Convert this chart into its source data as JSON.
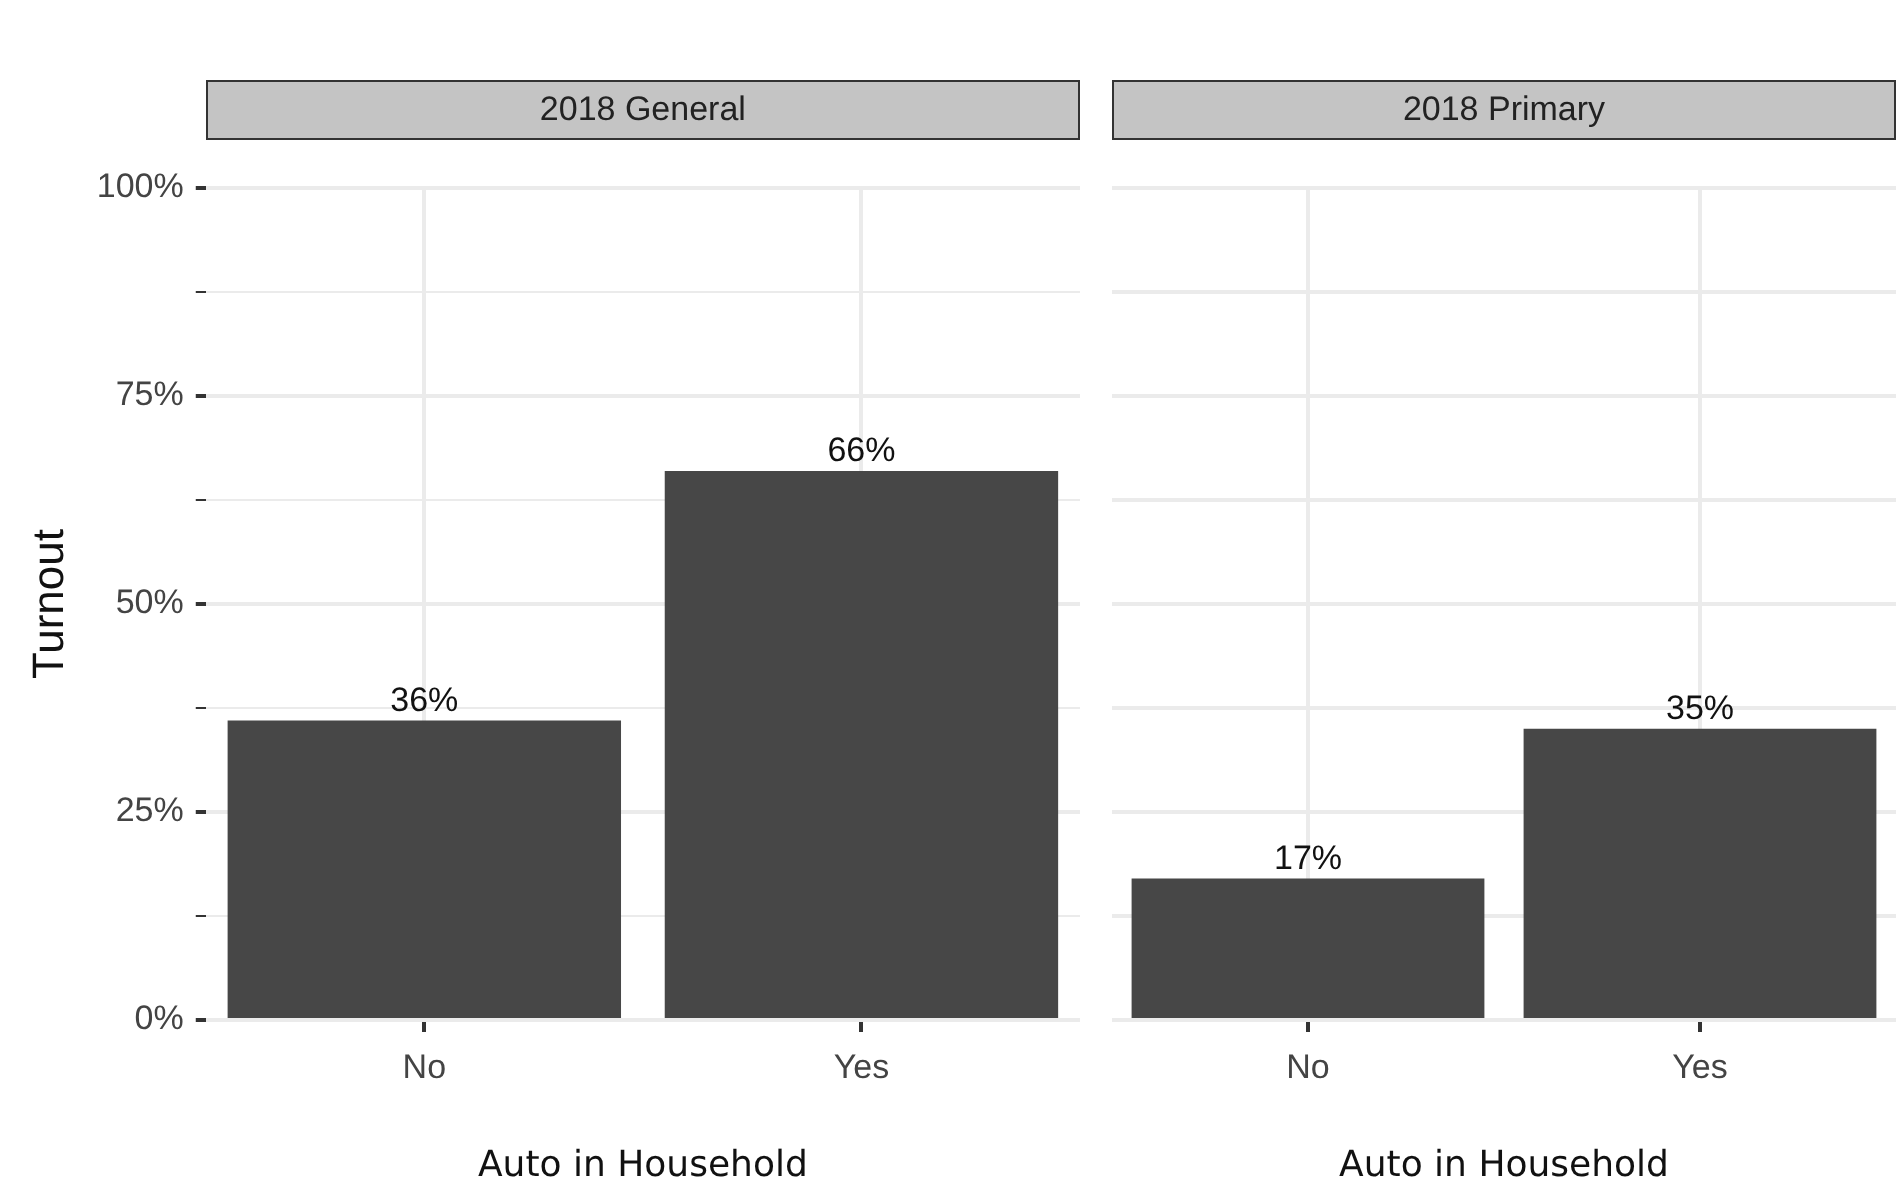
{
  "chart_data": [
    {
      "type": "bar",
      "title": "2018 General",
      "xlabel": "Auto in Household",
      "ylabel": "Turnout",
      "categories": [
        "No",
        "Yes"
      ],
      "series": [
        {
          "color": "#474747",
          "values": [
            36,
            66
          ],
          "value_labels": [
            "36%",
            "66%"
          ]
        }
      ],
      "ylim": [
        0,
        100
      ],
      "yticks": [
        {
          "value": 0,
          "label": "0%"
        },
        {
          "value": 12.5,
          "label": null
        },
        {
          "value": 25,
          "label": "25%"
        },
        {
          "value": 37.5,
          "label": null
        },
        {
          "value": 50,
          "label": "50%"
        },
        {
          "value": 62.5,
          "label": null
        },
        {
          "value": 75,
          "label": "75%"
        },
        {
          "value": 87.5,
          "label": null
        },
        {
          "value": 100,
          "label": "100%"
        }
      ],
      "grid": true
    },
    {
      "type": "bar",
      "title": "2018 Primary",
      "xlabel": "Auto in Household",
      "categories": [
        "No",
        "Yes"
      ],
      "series": [
        {
          "color": "#474747",
          "values": [
            17,
            35
          ],
          "value_labels": [
            "17%",
            "35%"
          ]
        }
      ],
      "ylim": [
        0,
        100
      ],
      "yticks": [
        0,
        12.5,
        25,
        37.5,
        50,
        62.5,
        75,
        87.5,
        100
      ],
      "grid": true,
      "tick_labels": "x"
    }
  ]
}
